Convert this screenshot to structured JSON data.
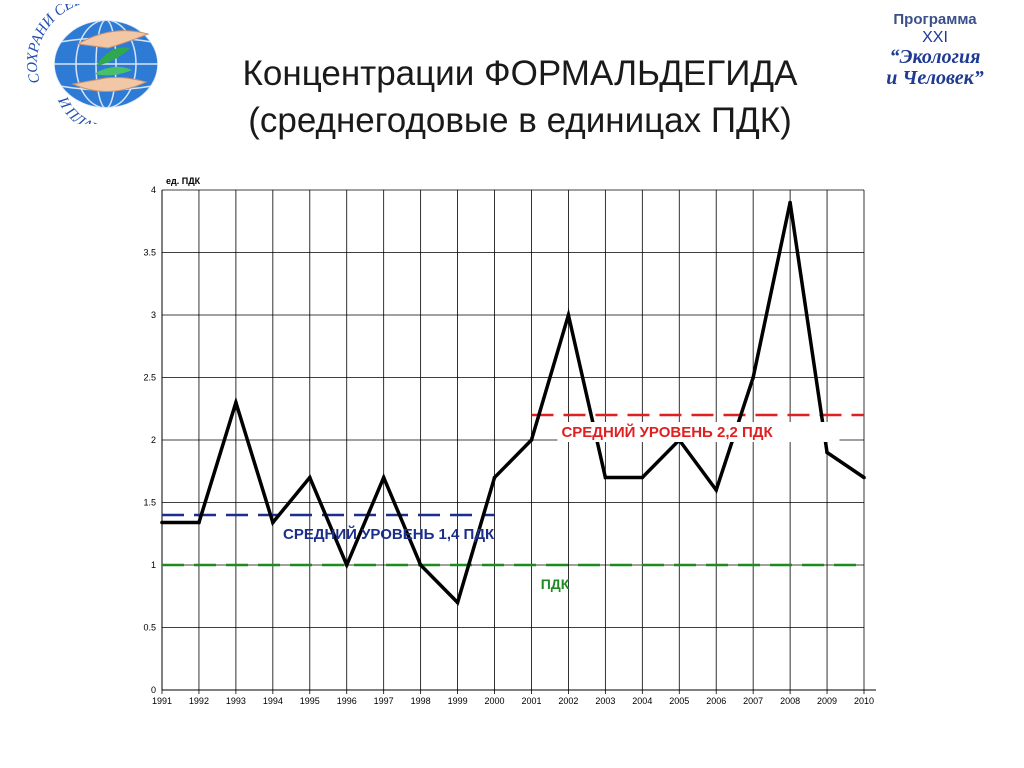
{
  "title": {
    "line1": "Концентрации ФОРМАЛЬДЕГИДА",
    "line2": "(среднегодовые в единицах ПДК)"
  },
  "logo_left": {
    "text_top": "СОХРАНИ СЕБЯ",
    "text_bottom": "И ПЛАНЕТУ"
  },
  "logo_right": {
    "line1": "Программа",
    "line2": "XXI",
    "line3": "“Экология",
    "line4": "и Человек”"
  },
  "chart_data": {
    "type": "line",
    "unit_label": "ед. ПДК",
    "x": [
      "1991",
      "1992",
      "1993",
      "1994",
      "1995",
      "1996",
      "1997",
      "1998",
      "1999",
      "2000",
      "2001",
      "2002",
      "2003",
      "2004",
      "2005",
      "2006",
      "2007",
      "2008",
      "2009",
      "2010"
    ],
    "series": [
      {
        "values": [
          1.34,
          1.34,
          2.3,
          1.34,
          1.7,
          1.0,
          1.7,
          1.0,
          0.7,
          1.7,
          2.0,
          3.0,
          1.7,
          1.7,
          2.0,
          1.6,
          2.5,
          3.9,
          1.9,
          1.7
        ]
      }
    ],
    "yticks": [
      "0",
      "0.5",
      "1",
      "1.5",
      "2",
      "2.5",
      "3",
      "3.5",
      "4"
    ],
    "ylim": [
      0,
      4
    ],
    "grid": true,
    "reference_lines": [
      {
        "label": "СРЕДНИЙ УРОВЕНЬ 1,4 ПДК",
        "value": 1.4,
        "from": "1991",
        "to": "2000",
        "color": "#1c2e8c"
      },
      {
        "label": "СРЕДНИЙ УРОВЕНЬ 2,2 ПДК",
        "value": 2.2,
        "from": "2001",
        "to": "2010",
        "color": "#e02020"
      },
      {
        "label": "ПДК",
        "value": 1.0,
        "from": "1991",
        "to": "2010",
        "color": "#1f8a1f"
      }
    ],
    "colors": {
      "line": "#000000",
      "grid": "#000000"
    }
  }
}
